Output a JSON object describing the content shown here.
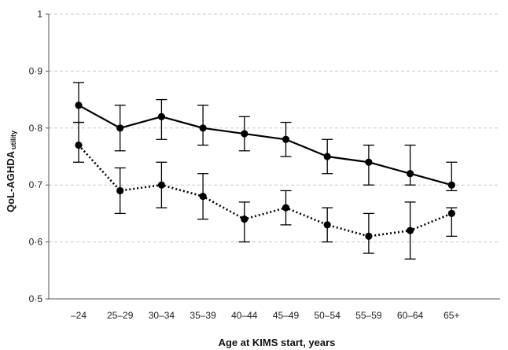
{
  "chart_data": {
    "type": "line",
    "categories": [
      "–24",
      "25–29",
      "30–34",
      "35–39",
      "40–44",
      "45–49",
      "50–54",
      "55–59",
      "60–64",
      "65+"
    ],
    "series": [
      {
        "style": "solid",
        "values": [
          0.84,
          0.8,
          0.82,
          0.8,
          0.79,
          0.78,
          0.75,
          0.74,
          0.72,
          0.7
        ],
        "lower": [
          0.81,
          0.76,
          0.78,
          0.77,
          0.76,
          0.75,
          0.72,
          0.7,
          0.7,
          0.69
        ],
        "upper": [
          0.88,
          0.84,
          0.85,
          0.84,
          0.82,
          0.81,
          0.78,
          0.77,
          0.77,
          0.74
        ]
      },
      {
        "style": "dotted",
        "values": [
          0.77,
          0.69,
          0.7,
          0.68,
          0.64,
          0.66,
          0.63,
          0.61,
          0.62,
          0.65
        ],
        "lower": [
          0.74,
          0.65,
          0.66,
          0.64,
          0.6,
          0.63,
          0.6,
          0.58,
          0.57,
          0.61
        ],
        "upper": [
          0.81,
          0.73,
          0.74,
          0.72,
          0.67,
          0.69,
          0.66,
          0.65,
          0.67,
          0.66
        ]
      }
    ],
    "xlabel": "Age at KIMS start, years",
    "ylabel": "QoL-AGHDA",
    "ylabel_subscript": "utility",
    "ylim": [
      0.5,
      1.0
    ],
    "yticks": [
      0.5,
      0.6,
      0.7,
      0.8,
      0.9,
      1.0
    ],
    "ytick_labels": [
      "0·5",
      "0·6",
      "0·7",
      "0·8",
      "0·9",
      "1"
    ],
    "grid": true,
    "colors": {
      "line": "#000000",
      "grid": "#c8c8c8",
      "axis": "#555555"
    }
  }
}
